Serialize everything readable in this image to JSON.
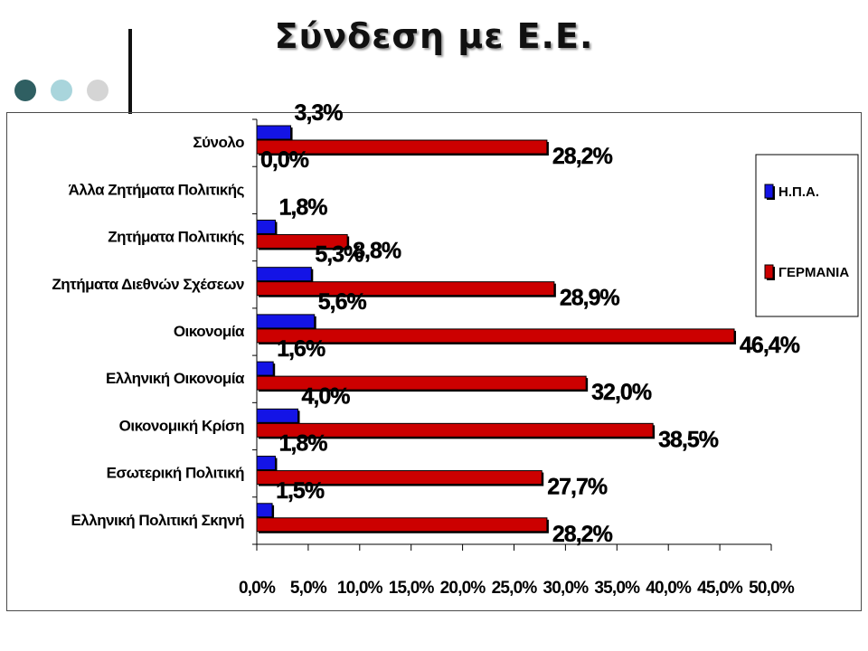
{
  "slide": {
    "title": "Σύνδεση με Ε.Ε."
  },
  "colors": {
    "usa": "#1414e6",
    "germany": "#cc0000",
    "dark_edge": "#000000",
    "dot_dark": "#2f5f62",
    "dot_light": "#a9d5dc",
    "dot_grey": "#d5d5d5"
  },
  "chart_data": {
    "type": "bar",
    "orientation": "horizontal",
    "title": "",
    "xlabel": "",
    "ylabel": "",
    "xlim": [
      0,
      50
    ],
    "x_ticks": [
      "0,0%",
      "5,0%",
      "10,0%",
      "15,0%",
      "20,0%",
      "25,0%",
      "30,0%",
      "35,0%",
      "40,0%",
      "45,0%",
      "50,0%"
    ],
    "grid": false,
    "legend_position": "right",
    "categories": [
      "Σύνολο",
      "Άλλα Ζητήματα Πολιτικής",
      "Ζητήματα Πολιτικής",
      "Ζητήματα Διεθνών Σχέσεων",
      "Οικονομία",
      "Ελληνική Οικονομία",
      "Οικονομική Κρίση",
      "Εσωτερική Πολιτική",
      "Ελληνική Πολιτική Σκηνή"
    ],
    "series": [
      {
        "name": "Η.Π.Α.",
        "values": [
          3.3,
          0.0,
          1.8,
          5.3,
          5.6,
          1.6,
          4.0,
          1.8,
          1.5
        ],
        "labels": [
          "3,3%",
          "0,0%",
          "1,8%",
          "5,3%",
          "5,6%",
          "1,6%",
          "4,0%",
          "1,8%",
          "1,5%"
        ]
      },
      {
        "name": "ΓΕΡΜΑΝΙΑ",
        "values": [
          28.2,
          null,
          8.8,
          28.9,
          46.4,
          32.0,
          38.5,
          27.7,
          28.2
        ],
        "labels": [
          "28,2%",
          "",
          "8,8%",
          "28,9%",
          "46,4%",
          "32,0%",
          "38,5%",
          "27,7%",
          "28,2%"
        ]
      }
    ]
  }
}
